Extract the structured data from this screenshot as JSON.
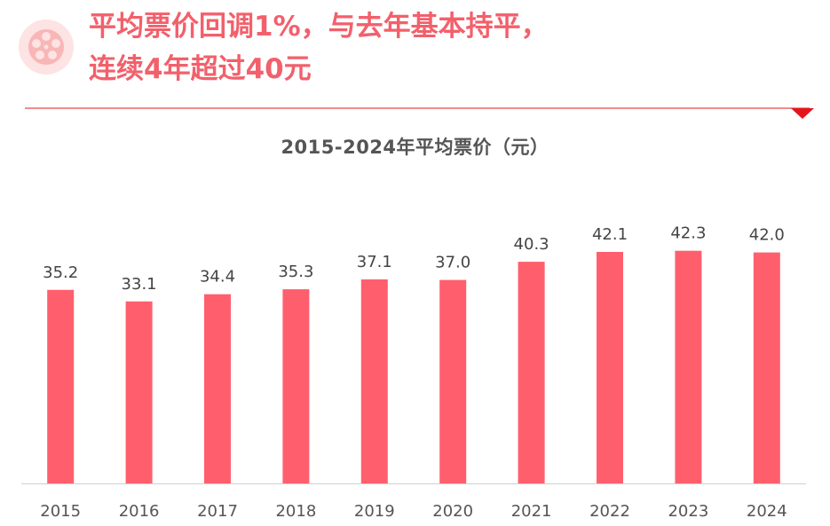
{
  "header": {
    "line1": "平均票价回调1%，与去年基本持平，",
    "line2": "连续4年超过40元",
    "icon": "film-reel-icon"
  },
  "colors": {
    "accent": "#f2606b",
    "bar": "#ff5f6d",
    "rule": "#f08c8e",
    "arrow": "#e6141c",
    "icon_bg": "#fde3e3"
  },
  "chart_data": {
    "type": "bar",
    "title": "2015-2024年平均票价（元）",
    "categories": [
      "2015",
      "2016",
      "2017",
      "2018",
      "2019",
      "2020",
      "2021",
      "2022",
      "2023",
      "2024"
    ],
    "values": [
      35.2,
      33.1,
      34.4,
      35.3,
      37.1,
      37.0,
      40.3,
      42.1,
      42.3,
      42.0
    ],
    "data_labels": [
      "35.2",
      "33.1",
      "34.4",
      "35.3",
      "37.1",
      "37.0",
      "40.3",
      "42.1",
      "42.3",
      "42.0"
    ],
    "xlabel": "",
    "ylabel": "",
    "ylim": [
      0,
      50
    ],
    "grid": false,
    "legend": "none"
  }
}
